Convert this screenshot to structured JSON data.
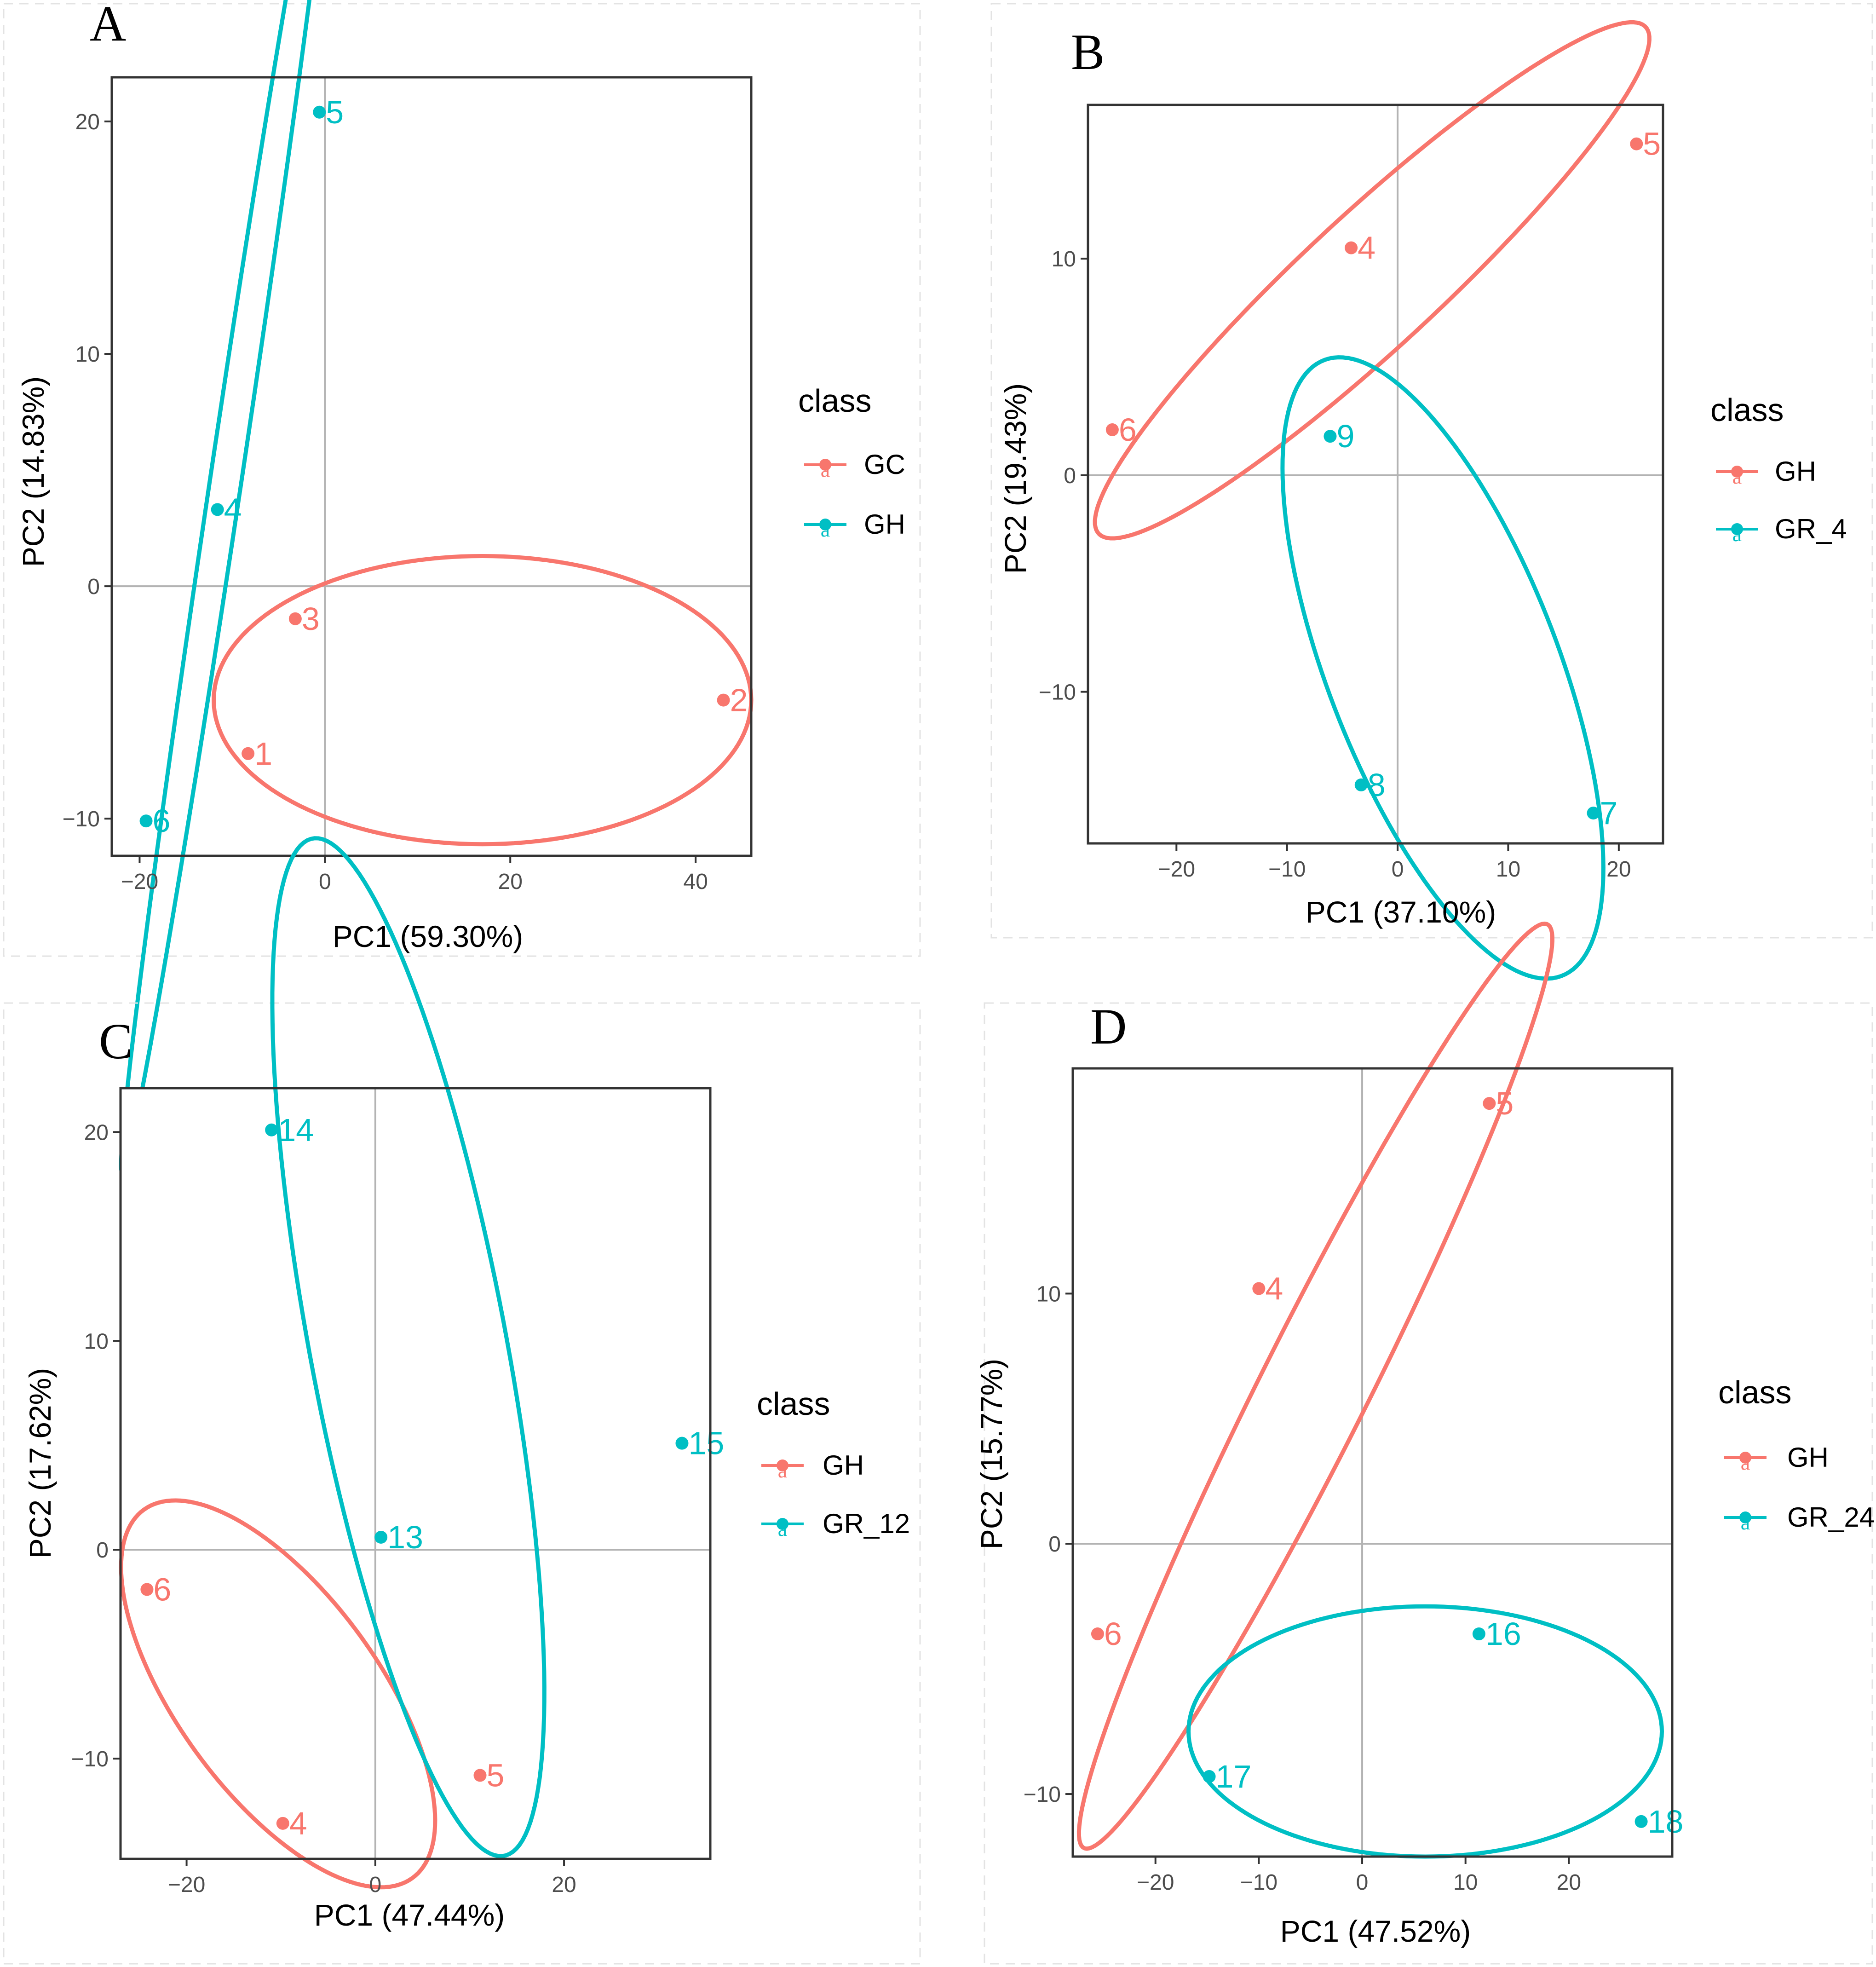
{
  "colors": {
    "red": "#F8766D",
    "teal": "#00BFC4",
    "axis": "#333333",
    "zero_line": "#B3B3B3",
    "frame_dash": "#E3E3E3"
  },
  "legend_glyph": "a",
  "chart_data": [
    {
      "type": "scatter",
      "panel": "A",
      "xlabel": "PC1 (59.30%)",
      "ylabel": "PC2 (14.83%)",
      "xlim": [
        -23,
        46
      ],
      "ylim": [
        -11.6,
        21.9
      ],
      "xticks": [
        -20,
        0,
        20,
        40
      ],
      "yticks": [
        -10,
        0,
        10,
        20
      ],
      "legend": {
        "title": "class",
        "entries": [
          "GC",
          "GH"
        ]
      },
      "series": [
        {
          "name": "GC",
          "color": "#F8766D",
          "points": [
            {
              "x": -3.2,
              "y": -1.4,
              "label": "3"
            },
            {
              "x": 43,
              "y": -4.9,
              "label": "2"
            },
            {
              "x": -8.3,
              "y": -7.2,
              "label": "1"
            }
          ],
          "ellipse": {
            "cx": 17,
            "cy": -4.9,
            "rx": 29,
            "ry": 6.2,
            "angle": 0
          }
        },
        {
          "name": "GH",
          "color": "#00BFC4",
          "points": [
            {
              "x": -0.6,
              "y": 20.4,
              "label": "5"
            },
            {
              "x": -11.6,
              "y": 3.3,
              "label": "4"
            },
            {
              "x": -19.3,
              "y": -10.1,
              "label": "6"
            }
          ],
          "ellipse": {
            "cx": -10.5,
            "cy": 5.1,
            "rx": 32.4,
            "ry": 1.6,
            "angle": 69.4
          }
        }
      ]
    },
    {
      "type": "scatter",
      "panel": "B",
      "xlabel": "PC1 (37.10%)",
      "ylabel": "PC2 (19.43%)",
      "xlim": [
        -28,
        24
      ],
      "ylim": [
        -17,
        17.1
      ],
      "xticks": [
        -20,
        -10,
        0,
        10,
        20
      ],
      "yticks": [
        -10,
        0,
        10
      ],
      "legend": {
        "title": "class",
        "entries": [
          "GH",
          "GR_4"
        ]
      },
      "series": [
        {
          "name": "GH",
          "color": "#F8766D",
          "points": [
            {
              "x": 21.6,
              "y": 15.3,
              "label": "5"
            },
            {
              "x": -4.2,
              "y": 10.5,
              "label": "4"
            },
            {
              "x": -25.8,
              "y": 2.1,
              "label": "6"
            }
          ],
          "ellipse": {
            "cx": -2.3,
            "cy": 9.0,
            "rx": 27.5,
            "ry": 3.8,
            "angle": 24.5
          }
        },
        {
          "name": "GR_4",
          "color": "#00BFC4",
          "points": [
            {
              "x": -6.1,
              "y": 1.8,
              "label": "9"
            },
            {
              "x": -3.3,
              "y": -14.3,
              "label": "8"
            },
            {
              "x": 17.7,
              "y": -15.6,
              "label": "7"
            }
          ],
          "ellipse": {
            "cx": 4.1,
            "cy": -8.9,
            "rx": 18.5,
            "ry": 8.6,
            "angle": -44.5
          }
        }
      ]
    },
    {
      "type": "scatter",
      "panel": "C",
      "xlabel": "PC1 (47.44%)",
      "ylabel": "PC2 (17.62%)",
      "xlim": [
        -27,
        35.5
      ],
      "ylim": [
        -14.8,
        22.1
      ],
      "xticks": [
        -20,
        0,
        20
      ],
      "yticks": [
        -10,
        0,
        10,
        20
      ],
      "legend": {
        "title": "class",
        "entries": [
          "GH",
          "GR_12"
        ]
      },
      "series": [
        {
          "name": "GH",
          "color": "#F8766D",
          "points": [
            {
              "x": -24.2,
              "y": -1.9,
              "label": "6"
            },
            {
              "x": 11.1,
              "y": -10.8,
              "label": "5"
            },
            {
              "x": -9.8,
              "y": -13.1,
              "label": "4"
            }
          ],
          "ellipse": {
            "cx": -10.3,
            "cy": -6.9,
            "rx": 17.9,
            "ry": 6.5,
            "angle": -23.3
          }
        },
        {
          "name": "GR_12",
          "color": "#00BFC4",
          "points": [
            {
              "x": -11,
              "y": 20.1,
              "label": "14"
            },
            {
              "x": 32.5,
              "y": 5.1,
              "label": "15"
            },
            {
              "x": 0.6,
              "y": 0.6,
              "label": "13"
            }
          ],
          "ellipse": {
            "cx": 3.5,
            "cy": 9.7,
            "rx": 26.6,
            "ry": 9.7,
            "angle": -64.5
          }
        }
      ]
    },
    {
      "type": "scatter",
      "panel": "D",
      "xlabel": "PC1 (47.52%)",
      "ylabel": "PC2 (15.77%)",
      "xlim": [
        -28,
        30
      ],
      "ylim": [
        -12.5,
        19
      ],
      "xticks": [
        -20,
        -10,
        0,
        10,
        20
      ],
      "yticks": [
        -10,
        0,
        10
      ],
      "legend": {
        "title": "class",
        "entries": [
          "GH",
          "GR_24"
        ]
      },
      "series": [
        {
          "name": "GH",
          "color": "#F8766D",
          "points": [
            {
              "x": 12.3,
              "y": 17.6,
              "label": "5"
            },
            {
              "x": -10,
              "y": 10.2,
              "label": "4"
            },
            {
              "x": -25.6,
              "y": -3.6,
              "label": "6"
            }
          ],
          "ellipse": {
            "cx": -4.5,
            "cy": 6.3,
            "rx": 29.2,
            "ry": 3.7,
            "angle": 38.7
          }
        },
        {
          "name": "GR_24",
          "color": "#00BFC4",
          "points": [
            {
              "x": 11.3,
              "y": -3.6,
              "label": "16"
            },
            {
              "x": -14.8,
              "y": -9.3,
              "label": "17"
            },
            {
              "x": 27,
              "y": -11.1,
              "label": "18"
            }
          ],
          "ellipse": {
            "cx": 6.1,
            "cy": -7.5,
            "rx": 22.9,
            "ry": 5.0,
            "angle": 0
          }
        }
      ]
    }
  ]
}
